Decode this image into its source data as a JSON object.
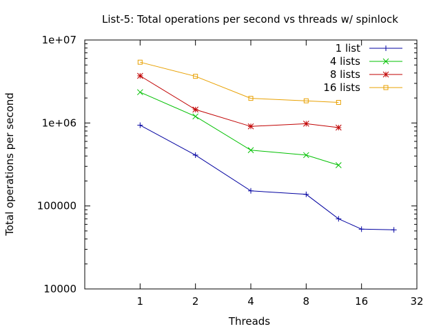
{
  "chart_data": {
    "type": "line",
    "title": "List-5: Total operations per second vs threads w/ spinlock",
    "xlabel": "Threads",
    "ylabel": "Total operations per second",
    "x_scale": "log2",
    "y_scale": "log10",
    "xlim": [
      0.5,
      32
    ],
    "ylim": [
      10000,
      10000000
    ],
    "x_ticks": [
      1,
      2,
      4,
      8,
      16,
      32
    ],
    "x_tick_labels": [
      "1",
      "2",
      "4",
      "8",
      "16",
      "32"
    ],
    "y_ticks": [
      10000,
      100000,
      1000000,
      10000000
    ],
    "y_tick_labels": [
      "10000",
      "100000",
      "1e+06",
      "1e+07"
    ],
    "grid": false,
    "legend_position": "top-right",
    "series": [
      {
        "name": "1 list",
        "color": "#0000a0",
        "marker": "plus",
        "x": [
          1,
          2,
          4,
          8,
          12,
          16,
          24
        ],
        "y": [
          940000,
          410000,
          152000,
          138000,
          70000,
          52500,
          51500
        ]
      },
      {
        "name": "4 lists",
        "color": "#00c000",
        "marker": "cross",
        "x": [
          1,
          2,
          4,
          8,
          12
        ],
        "y": [
          2350000,
          1200000,
          470000,
          410000,
          310000
        ]
      },
      {
        "name": "8 lists",
        "color": "#c00000",
        "marker": "star",
        "x": [
          1,
          2,
          4,
          8,
          12
        ],
        "y": [
          3700000,
          1450000,
          910000,
          980000,
          880000
        ]
      },
      {
        "name": "16 lists",
        "color": "#e8a000",
        "marker": "square",
        "x": [
          1,
          2,
          4,
          8,
          12
        ],
        "y": [
          5400000,
          3650000,
          1980000,
          1850000,
          1770000
        ]
      }
    ]
  }
}
